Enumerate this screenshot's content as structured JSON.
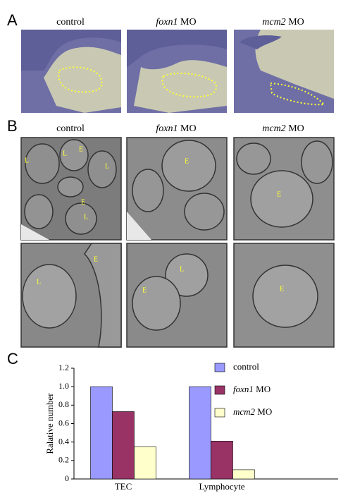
{
  "panel_a": {
    "label": "A",
    "columns": [
      "control",
      "foxn1 MO",
      "mcm2 MO"
    ]
  },
  "panel_b": {
    "label": "B",
    "columns": [
      "control",
      "foxn1 MO",
      "mcm2 MO"
    ],
    "image_labels": [
      [
        "L",
        "E",
        "L",
        "L",
        "E",
        "L"
      ],
      [
        "E"
      ],
      [
        "E"
      ],
      [
        "E",
        "L"
      ],
      [
        "L",
        "E"
      ],
      [
        "E"
      ]
    ]
  },
  "chart_data": {
    "panel_label": "C",
    "type": "bar",
    "categories": [
      "TEC",
      "Lymphocyte"
    ],
    "series": [
      {
        "name": "control",
        "color": "#9999ff",
        "values": [
          1.0,
          1.0
        ]
      },
      {
        "name": "foxn1 MO",
        "color": "#993366",
        "values": [
          0.73,
          0.41
        ]
      },
      {
        "name": "mcm2 MO",
        "color": "#ffffcc",
        "values": [
          0.35,
          0.1
        ]
      }
    ],
    "ylim": [
      0,
      1.2
    ],
    "yticks": [
      0,
      0.2,
      0.4,
      0.6,
      0.8,
      {
        "value": 1,
        "label": "1.0"
      },
      1.2
    ],
    "ylabel": "Ralative number",
    "legend": "upper right"
  }
}
